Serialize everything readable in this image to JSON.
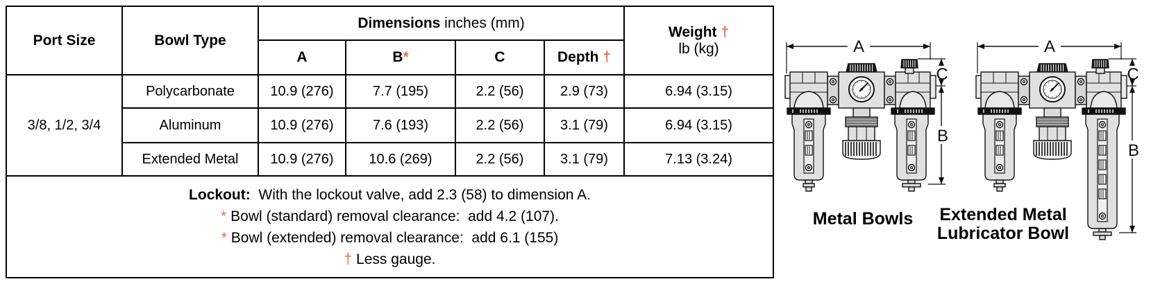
{
  "table": {
    "header": {
      "port_size": "Port Size",
      "bowl_type": "Bowl Type",
      "dimensions": "Dimensions",
      "dimensions_units": " inches (mm)",
      "col_a": "A",
      "col_b": "B",
      "col_b_mark": "*",
      "col_c": "C",
      "col_depth": "Depth ",
      "col_depth_mark": "†",
      "weight": "Weight ",
      "weight_mark": "†",
      "weight_units": "lb (kg)"
    },
    "port_size_value": "3/8, 1/2, 3/4",
    "rows": [
      {
        "bowl_type": "Polycarbonate",
        "a": "10.9 (276)",
        "b": "7.7 (195)",
        "c": "2.2 (56)",
        "depth": "2.9 (73)",
        "weight": "6.94 (3.15)"
      },
      {
        "bowl_type": "Aluminum",
        "a": "10.9 (276)",
        "b": "7.6 (193)",
        "c": "2.2 (56)",
        "depth": "3.1 (79)",
        "weight": "6.94 (3.15)"
      },
      {
        "bowl_type": "Extended Metal",
        "a": "10.9 (276)",
        "b": "10.6 (269)",
        "c": "2.2 (56)",
        "depth": "3.1 (79)",
        "weight": "7.13 (3.24)"
      }
    ],
    "notes": [
      {
        "mark": "Lockout:",
        "text": "  With the lockout valve, add 2.3 (58) to dimension A."
      },
      {
        "mark": "*",
        "text": " Bowl (standard) removal clearance:  add 4.2 (107)."
      },
      {
        "mark": "*",
        "text": " Bowl (extended) removal clearance:  add 6.1 (155)"
      },
      {
        "mark": "†",
        "text": " Less gauge."
      }
    ]
  },
  "diagrams": {
    "dimension_labels": {
      "a": "A",
      "b": "B",
      "c": "C"
    },
    "metal_bowls": {
      "caption": "Metal Bowls"
    },
    "extended_metal": {
      "caption_line1": "Extended Metal",
      "caption_line2": "Lubricator Bowl"
    }
  },
  "colors": {
    "accent": "#EE6A4D",
    "header_bg": "#D2D2D2",
    "line": "#000000"
  }
}
